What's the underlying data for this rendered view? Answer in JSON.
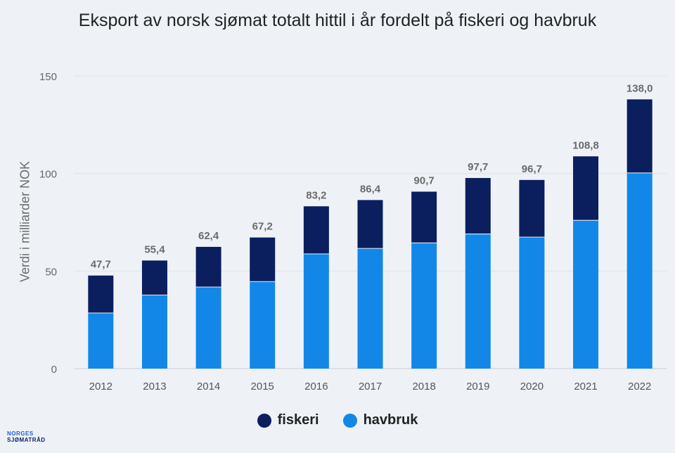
{
  "chart_data": {
    "type": "bar",
    "stacked": true,
    "title": "Eksport av norsk sjømat totalt hittil i år fordelt på fiskeri og havbruk",
    "xlabel": "",
    "ylabel": "Verdi i milliarder NOK",
    "ylim": [
      0,
      150
    ],
    "yticks": [
      0,
      50,
      100,
      150
    ],
    "categories": [
      "2012",
      "2013",
      "2014",
      "2015",
      "2016",
      "2017",
      "2018",
      "2019",
      "2020",
      "2021",
      "2022"
    ],
    "series": [
      {
        "name": "havbruk",
        "color": "#1287e8",
        "values": [
          28.5,
          37.7,
          41.8,
          44.6,
          58.8,
          61.6,
          64.4,
          69.0,
          67.4,
          76.0,
          100.3
        ]
      },
      {
        "name": "fiskeri",
        "color": "#0b1f5e",
        "values": [
          19.2,
          17.7,
          20.6,
          22.6,
          24.4,
          24.8,
          26.3,
          28.7,
          29.3,
          32.8,
          37.7
        ]
      }
    ],
    "totals": [
      "47,7",
      "55,4",
      "62,4",
      "67,2",
      "83,2",
      "86,4",
      "90,7",
      "97,7",
      "96,7",
      "108,8",
      "138,0"
    ],
    "legend_position": "bottom-center",
    "grid": true
  },
  "legend": [
    {
      "label": "fiskeri",
      "color": "#0b1f5e"
    },
    {
      "label": "havbruk",
      "color": "#1287e8"
    }
  ],
  "logo": {
    "line1": "NORGES",
    "line2": "SJØMATRÅD"
  }
}
